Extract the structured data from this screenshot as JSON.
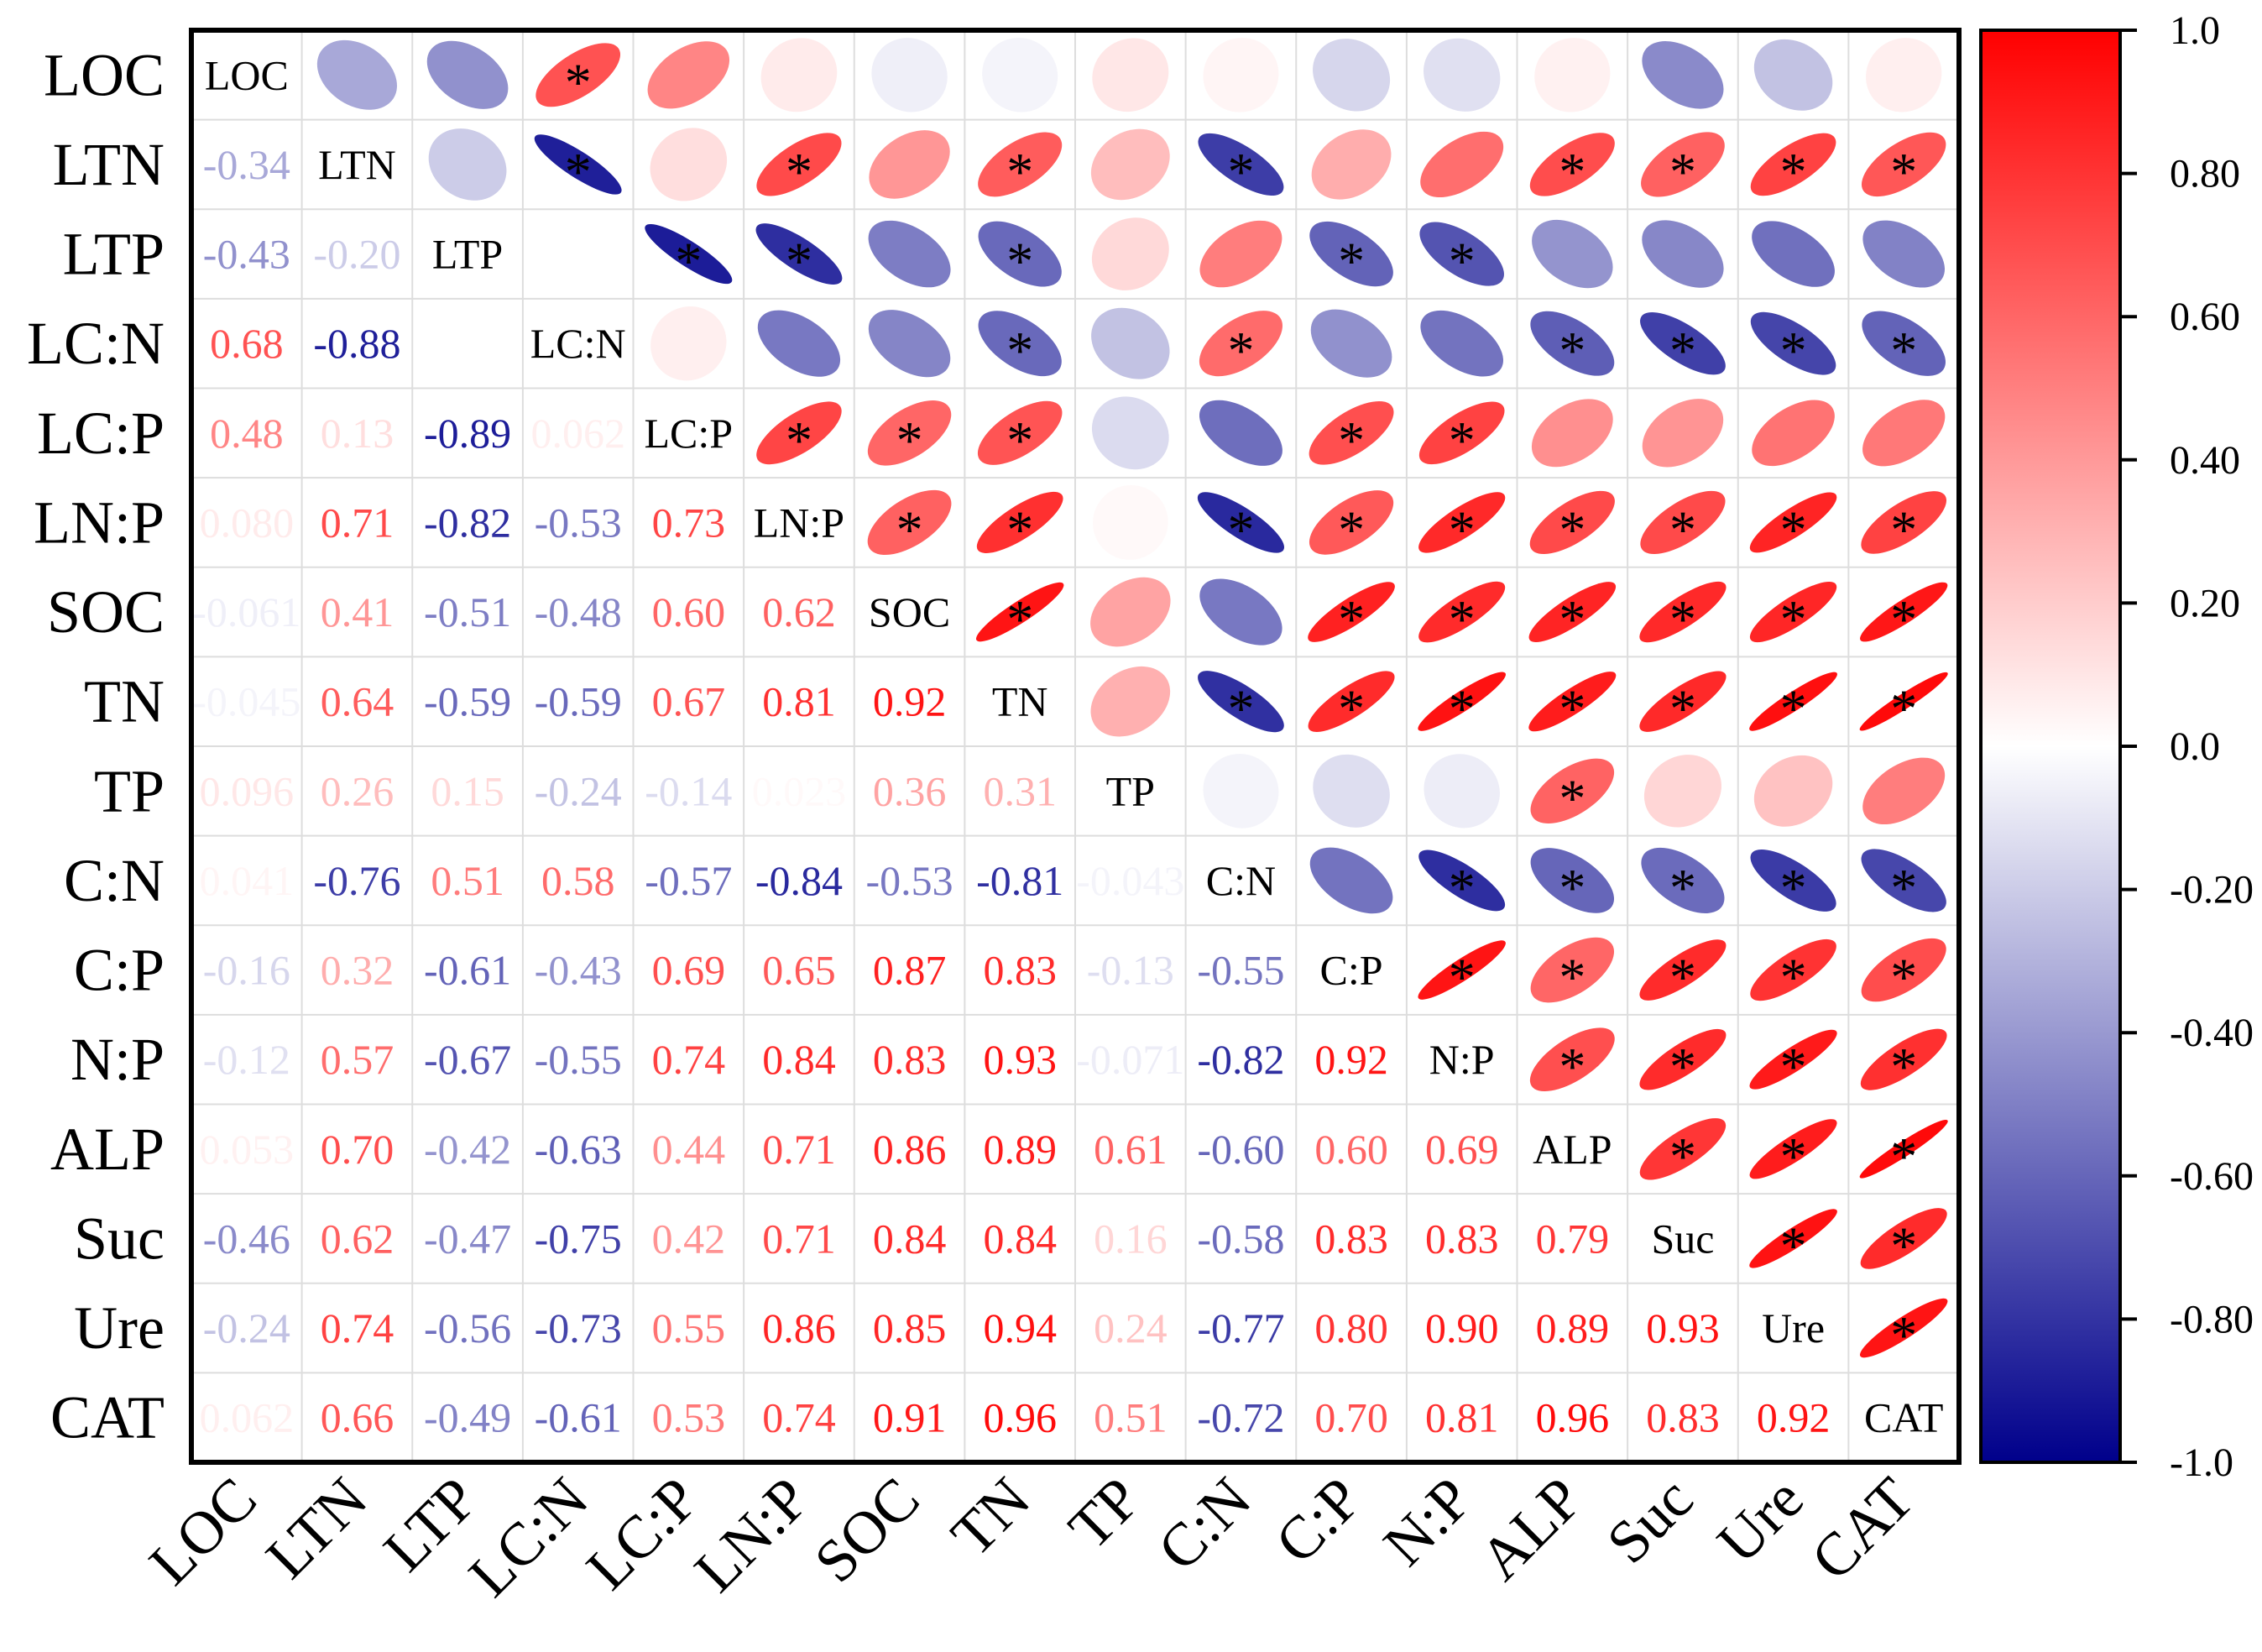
{
  "chart_data": {
    "type": "heatmap",
    "subtype": "correlation-ellipse-matrix",
    "title": "",
    "variables": [
      "LOC",
      "LTN",
      "LTP",
      "LC:N",
      "LC:P",
      "LN:P",
      "SOC",
      "TN",
      "TP",
      "C:N",
      "C:P",
      "N:P",
      "ALP",
      "Suc",
      "Ure",
      "CAT"
    ],
    "lower_labels": [
      [],
      [
        "-0.34"
      ],
      [
        "-0.43",
        "-0.20"
      ],
      [
        "0.68",
        "-0.88",
        ""
      ],
      [
        "0.48",
        "0.13",
        "-0.89",
        "0.062"
      ],
      [
        "0.080",
        "0.71",
        "-0.82",
        "-0.53",
        "0.73"
      ],
      [
        "-0.061",
        "0.41",
        "-0.51",
        "-0.48",
        "0.60",
        "0.62"
      ],
      [
        "-0.045",
        "0.64",
        "-0.59",
        "-0.59",
        "0.67",
        "0.81",
        "0.92"
      ],
      [
        "0.096",
        "0.26",
        "0.15",
        "-0.24",
        "-0.14",
        "0.023",
        "0.36",
        "0.31"
      ],
      [
        "0.041",
        "-0.76",
        "0.51",
        "0.58",
        "-0.57",
        "-0.84",
        "-0.53",
        "-0.81",
        "-0.043"
      ],
      [
        "-0.16",
        "0.32",
        "-0.61",
        "-0.43",
        "0.69",
        "0.65",
        "0.87",
        "0.83",
        "-0.13",
        "-0.55"
      ],
      [
        "-0.12",
        "0.57",
        "-0.67",
        "-0.55",
        "0.74",
        "0.84",
        "0.83",
        "0.93",
        "-0.071",
        "-0.82",
        "0.92"
      ],
      [
        "0.053",
        "0.70",
        "-0.42",
        "-0.63",
        "0.44",
        "0.71",
        "0.86",
        "0.89",
        "0.61",
        "-0.60",
        "0.60",
        "0.69"
      ],
      [
        "-0.46",
        "0.62",
        "-0.47",
        "-0.75",
        "0.42",
        "0.71",
        "0.84",
        "0.84",
        "0.16",
        "-0.58",
        "0.83",
        "0.83",
        "0.79"
      ],
      [
        "-0.24",
        "0.74",
        "-0.56",
        "-0.73",
        "0.55",
        "0.86",
        "0.85",
        "0.94",
        "0.24",
        "-0.77",
        "0.80",
        "0.90",
        "0.89",
        "0.93"
      ],
      [
        "0.062",
        "0.66",
        "-0.49",
        "-0.61",
        "0.53",
        "0.74",
        "0.91",
        "0.96",
        "0.51",
        "-0.72",
        "0.70",
        "0.81",
        "0.96",
        "0.83",
        "0.92"
      ]
    ],
    "r_values": [
      [],
      [
        -0.34
      ],
      [
        -0.43,
        -0.2
      ],
      [
        0.68,
        -0.88,
        0.0
      ],
      [
        0.48,
        0.13,
        -0.89,
        0.062
      ],
      [
        0.08,
        0.71,
        -0.82,
        -0.53,
        0.73
      ],
      [
        -0.061,
        0.41,
        -0.51,
        -0.48,
        0.6,
        0.62
      ],
      [
        -0.045,
        0.64,
        -0.59,
        -0.59,
        0.67,
        0.81,
        0.92
      ],
      [
        0.096,
        0.26,
        0.15,
        -0.24,
        -0.14,
        0.023,
        0.36,
        0.31
      ],
      [
        0.041,
        -0.76,
        0.51,
        0.58,
        -0.57,
        -0.84,
        -0.53,
        -0.81,
        -0.043
      ],
      [
        -0.16,
        0.32,
        -0.61,
        -0.43,
        0.69,
        0.65,
        0.87,
        0.83,
        -0.13,
        -0.55
      ],
      [
        -0.12,
        0.57,
        -0.67,
        -0.55,
        0.74,
        0.84,
        0.83,
        0.93,
        -0.071,
        -0.82,
        0.92
      ],
      [
        0.053,
        0.7,
        -0.42,
        -0.63,
        0.44,
        0.71,
        0.86,
        0.89,
        0.61,
        -0.6,
        0.6,
        0.69
      ],
      [
        -0.46,
        0.62,
        -0.47,
        -0.75,
        0.42,
        0.71,
        0.84,
        0.84,
        0.16,
        -0.58,
        0.83,
        0.83,
        0.79
      ],
      [
        -0.24,
        0.74,
        -0.56,
        -0.73,
        0.55,
        0.86,
        0.85,
        0.94,
        0.24,
        -0.77,
        0.8,
        0.9,
        0.89,
        0.93
      ],
      [
        0.062,
        0.66,
        -0.49,
        -0.61,
        0.53,
        0.74,
        0.91,
        0.96,
        0.51,
        -0.72,
        0.7,
        0.81,
        0.96,
        0.83,
        0.92
      ]
    ],
    "significant_pairs": [
      [
        0,
        3
      ],
      [
        1,
        3
      ],
      [
        1,
        5
      ],
      [
        1,
        7
      ],
      [
        1,
        9
      ],
      [
        1,
        12
      ],
      [
        1,
        13
      ],
      [
        1,
        14
      ],
      [
        1,
        15
      ],
      [
        2,
        4
      ],
      [
        2,
        5
      ],
      [
        2,
        7
      ],
      [
        2,
        10
      ],
      [
        2,
        11
      ],
      [
        3,
        7
      ],
      [
        3,
        9
      ],
      [
        3,
        12
      ],
      [
        3,
        13
      ],
      [
        3,
        14
      ],
      [
        3,
        15
      ],
      [
        4,
        5
      ],
      [
        4,
        6
      ],
      [
        4,
        7
      ],
      [
        4,
        10
      ],
      [
        4,
        11
      ],
      [
        5,
        6
      ],
      [
        5,
        7
      ],
      [
        5,
        9
      ],
      [
        5,
        10
      ],
      [
        5,
        11
      ],
      [
        5,
        12
      ],
      [
        5,
        13
      ],
      [
        5,
        14
      ],
      [
        5,
        15
      ],
      [
        6,
        7
      ],
      [
        6,
        10
      ],
      [
        6,
        11
      ],
      [
        6,
        12
      ],
      [
        6,
        13
      ],
      [
        6,
        14
      ],
      [
        6,
        15
      ],
      [
        7,
        9
      ],
      [
        7,
        10
      ],
      [
        7,
        11
      ],
      [
        7,
        12
      ],
      [
        7,
        13
      ],
      [
        7,
        14
      ],
      [
        7,
        15
      ],
      [
        8,
        12
      ],
      [
        9,
        11
      ],
      [
        9,
        12
      ],
      [
        9,
        13
      ],
      [
        9,
        14
      ],
      [
        9,
        15
      ],
      [
        10,
        11
      ],
      [
        10,
        12
      ],
      [
        10,
        13
      ],
      [
        10,
        14
      ],
      [
        10,
        15
      ],
      [
        11,
        12
      ],
      [
        11,
        13
      ],
      [
        11,
        14
      ],
      [
        11,
        15
      ],
      [
        12,
        13
      ],
      [
        12,
        14
      ],
      [
        12,
        15
      ],
      [
        13,
        14
      ],
      [
        13,
        15
      ],
      [
        14,
        15
      ]
    ],
    "significance_marker": "*",
    "colorbar": {
      "range": [
        -1.0,
        1.0
      ],
      "ticks": [
        "1.0",
        "0.80",
        "0.60",
        "0.40",
        "0.20",
        "0.0",
        "-0.20",
        "-0.40",
        "-0.60",
        "-0.80",
        "-1.0"
      ],
      "colors": {
        "negative": "#00008B",
        "zero": "#FFFFFF",
        "positive": "#FF0000"
      }
    },
    "xlabel": "",
    "ylabel": ""
  }
}
